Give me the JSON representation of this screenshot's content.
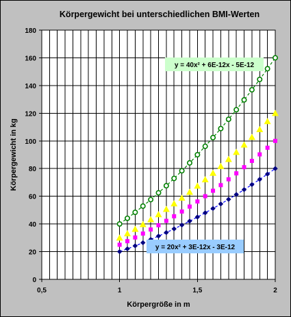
{
  "chart_data": {
    "type": "scatter",
    "title": "Körpergewicht bei unterschiedlichen BMI-Werten",
    "xlabel": "Körpergröße in m",
    "ylabel": "Körpergewicht in kg",
    "xlim": [
      0.5,
      2
    ],
    "ylim": [
      0,
      180
    ],
    "x_ticks": [
      0.5,
      1,
      1.5,
      2
    ],
    "x_tick_labels": [
      "0,5",
      "1",
      "1,5",
      "2"
    ],
    "x_minor_step": 0.05,
    "y_ticks": [
      0,
      20,
      40,
      60,
      80,
      100,
      120,
      140,
      160,
      180
    ],
    "grid": true,
    "legend": false,
    "x": [
      1.0,
      1.05,
      1.1,
      1.15,
      1.2,
      1.25,
      1.3,
      1.35,
      1.4,
      1.45,
      1.5,
      1.55,
      1.6,
      1.65,
      1.7,
      1.75,
      1.8,
      1.85,
      1.9,
      1.95,
      2.0
    ],
    "series": [
      {
        "color": "#000080",
        "marker": "diamond",
        "values": [
          20,
          22.05,
          24.2,
          26.45,
          28.8,
          31.25,
          33.8,
          36.45,
          39.2,
          42.05,
          45,
          48.05,
          51.2,
          54.45,
          57.8,
          61.25,
          64.8,
          68.45,
          72.2,
          76.05,
          80
        ],
        "trendline": {
          "color": "#0000ff",
          "style": "dashed",
          "coef": 20
        }
      },
      {
        "color": "#ff00ff",
        "marker": "square",
        "values": [
          25,
          27.56,
          30.25,
          33.06,
          36,
          39.06,
          42.25,
          45.56,
          49,
          52.56,
          56.25,
          60.06,
          64,
          68.06,
          72.25,
          76.56,
          81,
          85.56,
          90.25,
          95.06,
          100
        ]
      },
      {
        "color": "#ffff00",
        "marker": "triangle",
        "values": [
          30,
          33.08,
          36.3,
          39.68,
          43.2,
          46.88,
          50.7,
          54.68,
          58.8,
          63.08,
          67.5,
          72.08,
          76.8,
          81.68,
          86.7,
          91.88,
          97.2,
          102.68,
          108.3,
          114.08,
          120
        ]
      },
      {
        "color": "#008000",
        "marker": "circle",
        "values": [
          40,
          44.1,
          48.4,
          52.9,
          57.6,
          62.5,
          67.6,
          72.9,
          78.4,
          84.1,
          90,
          96.1,
          102.4,
          108.9,
          115.6,
          122.5,
          129.6,
          136.9,
          144.4,
          152.1,
          160
        ],
        "trendline": {
          "color": "#008000",
          "style": "dashed",
          "coef": 40
        }
      }
    ],
    "annotations": [
      {
        "series": 3,
        "text": "y = 40x² + 6E-12x - 5E-12",
        "background": "#ccffcc"
      },
      {
        "series": 0,
        "text": "y = 20x² + 3E-12x - 3E-12",
        "background": "#99ccff"
      }
    ]
  }
}
